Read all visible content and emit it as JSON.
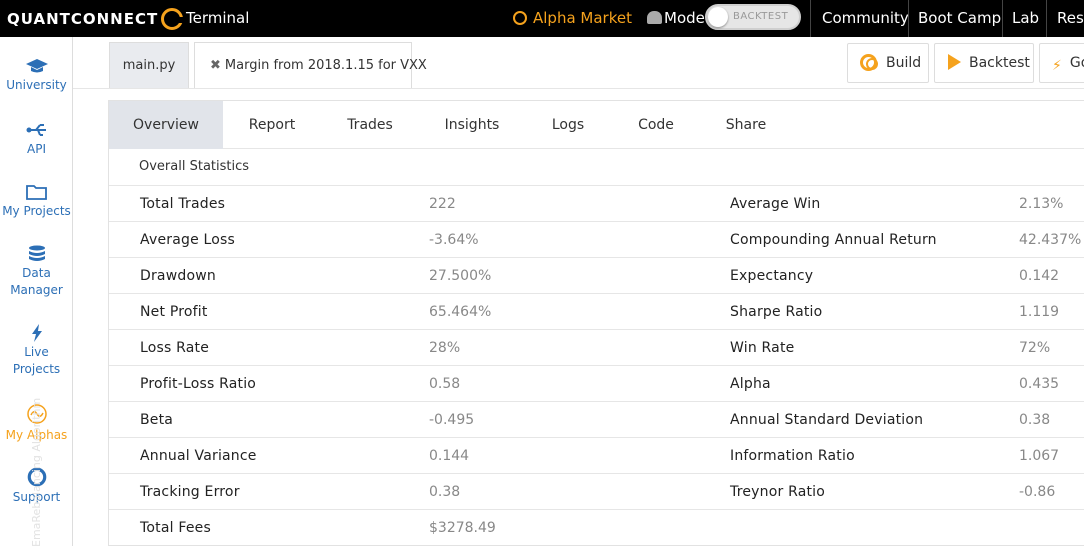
{
  "topbar": {
    "logo": "QUANTCONNECT",
    "terminal": "Terminal",
    "alpha_market": "Alpha Market",
    "mode_label": "Mode",
    "mode_toggle_text": "BACKTEST",
    "community": "Community",
    "boot_camp": "Boot Camp",
    "lab": "Lab",
    "research": "Rese"
  },
  "sidebar": {
    "items": [
      {
        "label": "University",
        "icon": "graduation-cap-icon"
      },
      {
        "label": "API",
        "icon": "usb-icon"
      },
      {
        "label": "My Projects",
        "icon": "folder-icon"
      },
      {
        "label1": "Data",
        "label2": "Manager",
        "icon": "database-icon"
      },
      {
        "label1": "Live",
        "label2": "Projects",
        "icon": "bolt-icon"
      },
      {
        "label": "My Alphas",
        "icon": "alpha-icon"
      },
      {
        "label": "Support",
        "icon": "lifebuoy-icon"
      }
    ],
    "vertical_text": "EmaRebalancing Algorithm"
  },
  "file_tabs": [
    {
      "label": "main.py"
    },
    {
      "close": "✖",
      "label": "Margin from 2018.1.15 for VXX"
    }
  ],
  "toolbar": {
    "build": "Build",
    "backtest": "Backtest",
    "go": "Go"
  },
  "report_tabs": [
    "Overview",
    "Report",
    "Trades",
    "Insights",
    "Logs",
    "Code",
    "Share"
  ],
  "section_title": "Overall Statistics",
  "stats": [
    {
      "l_label": "Total Trades",
      "l_value": "222",
      "r_label": "Average Win",
      "r_value": "2.13%"
    },
    {
      "l_label": "Average Loss",
      "l_value": "-3.64%",
      "r_label": "Compounding Annual Return",
      "r_value": "42.437%"
    },
    {
      "l_label": "Drawdown",
      "l_value": "27.500%",
      "r_label": "Expectancy",
      "r_value": "0.142"
    },
    {
      "l_label": "Net Profit",
      "l_value": "65.464%",
      "r_label": "Sharpe Ratio",
      "r_value": "1.119"
    },
    {
      "l_label": "Loss Rate",
      "l_value": "28%",
      "r_label": "Win Rate",
      "r_value": "72%"
    },
    {
      "l_label": "Profit-Loss Ratio",
      "l_value": "0.58",
      "r_label": "Alpha",
      "r_value": "0.435"
    },
    {
      "l_label": "Beta",
      "l_value": "-0.495",
      "r_label": "Annual Standard Deviation",
      "r_value": "0.38"
    },
    {
      "l_label": "Annual Variance",
      "l_value": "0.144",
      "r_label": "Information Ratio",
      "r_value": "1.067"
    },
    {
      "l_label": "Tracking Error",
      "l_value": "0.38",
      "r_label": "Treynor Ratio",
      "r_value": "-0.86"
    },
    {
      "l_label": "Total Fees",
      "l_value": "$3278.49",
      "r_label": "",
      "r_value": ""
    }
  ],
  "colors": {
    "accent": "#f5a21d",
    "link": "#2c6fb6",
    "topbar": "#000000",
    "selected_tab": "#e1e4ea"
  }
}
